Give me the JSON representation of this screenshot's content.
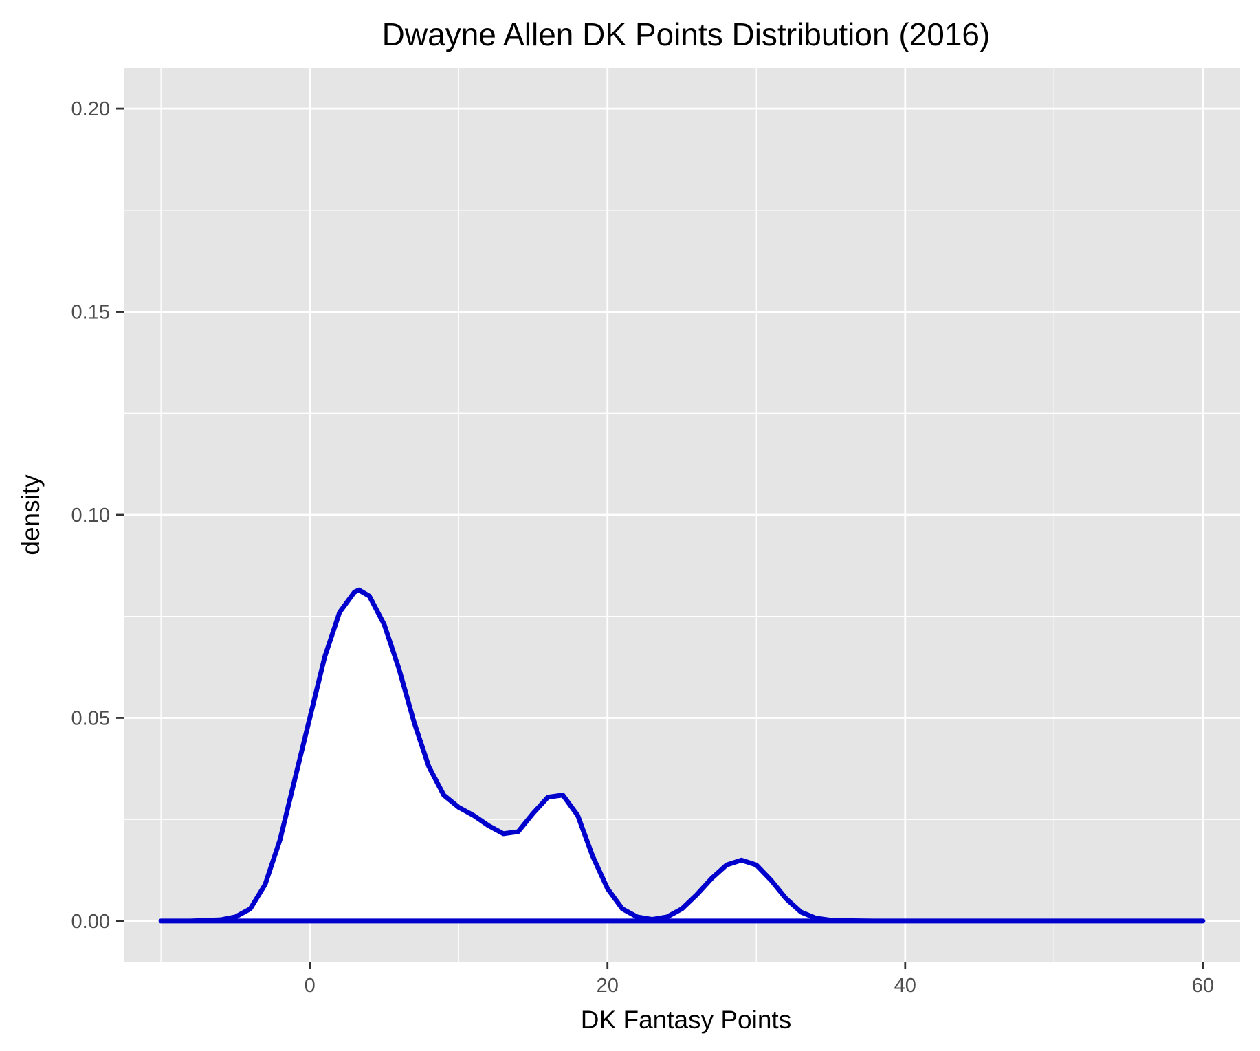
{
  "chart_data": {
    "type": "area",
    "title": "Dwayne Allen DK Points Distribution (2016)",
    "xlabel": "DK Fantasy Points",
    "ylabel": "density",
    "xlim": [
      -12.5,
      62.5
    ],
    "ylim": [
      -0.01,
      0.21
    ],
    "x_ticks": [
      0,
      20,
      40,
      60
    ],
    "x_tick_labels": [
      "0",
      "20",
      "40",
      "60"
    ],
    "y_ticks": [
      0,
      0.05,
      0.1,
      0.15,
      0.2
    ],
    "y_tick_labels": [
      "0.00",
      "0.05",
      "0.10",
      "0.15",
      "0.20"
    ],
    "x_minor_ticks": [
      -10,
      10,
      30,
      50
    ],
    "y_minor_ticks": [
      0.025,
      0.075,
      0.125,
      0.175
    ],
    "grid": true,
    "legend": "none",
    "colors": {
      "panel_background": "#e5e5e5",
      "grid": "#ffffff",
      "line": "#0000cc",
      "fill": "#ffffff"
    },
    "series": [
      {
        "x": [
          -10,
          -8,
          -6,
          -5,
          -4,
          -3,
          -2,
          -1,
          0,
          1,
          2,
          3,
          3.3,
          4,
          5,
          6,
          7,
          8,
          9,
          10,
          11,
          12,
          13,
          14,
          15,
          16,
          17,
          18,
          19,
          20,
          21,
          22,
          23,
          24,
          25,
          26,
          27,
          28,
          29,
          30,
          31,
          32,
          33,
          34,
          35,
          36,
          38,
          40,
          45,
          50,
          55,
          60
        ],
        "y": [
          0,
          0,
          0.0003,
          0.001,
          0.003,
          0.009,
          0.02,
          0.035,
          0.05,
          0.065,
          0.076,
          0.081,
          0.0815,
          0.08,
          0.073,
          0.062,
          0.049,
          0.038,
          0.031,
          0.028,
          0.026,
          0.0235,
          0.0215,
          0.022,
          0.0265,
          0.0305,
          0.031,
          0.026,
          0.016,
          0.008,
          0.003,
          0.001,
          0.0004,
          0.001,
          0.003,
          0.0065,
          0.0105,
          0.0138,
          0.015,
          0.0138,
          0.01,
          0.0055,
          0.0022,
          0.0007,
          0.0002,
          0.0001,
          0,
          0,
          0,
          0,
          0,
          0
        ]
      }
    ]
  }
}
